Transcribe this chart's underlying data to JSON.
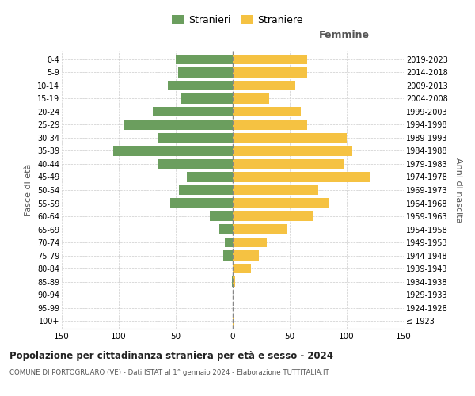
{
  "age_groups": [
    "100+",
    "95-99",
    "90-94",
    "85-89",
    "80-84",
    "75-79",
    "70-74",
    "65-69",
    "60-64",
    "55-59",
    "50-54",
    "45-49",
    "40-44",
    "35-39",
    "30-34",
    "25-29",
    "20-24",
    "15-19",
    "10-14",
    "5-9",
    "0-4"
  ],
  "birth_years": [
    "≤ 1923",
    "1924-1928",
    "1929-1933",
    "1934-1938",
    "1939-1943",
    "1944-1948",
    "1949-1953",
    "1954-1958",
    "1959-1963",
    "1964-1968",
    "1969-1973",
    "1974-1978",
    "1979-1983",
    "1984-1988",
    "1989-1993",
    "1994-1998",
    "1999-2003",
    "2004-2008",
    "2009-2013",
    "2014-2018",
    "2019-2023"
  ],
  "males": [
    0,
    0,
    0,
    1,
    0,
    8,
    7,
    12,
    20,
    55,
    47,
    40,
    65,
    105,
    65,
    95,
    70,
    45,
    57,
    48,
    50
  ],
  "females": [
    1,
    0,
    0,
    2,
    16,
    23,
    30,
    47,
    70,
    85,
    75,
    120,
    98,
    105,
    100,
    65,
    60,
    32,
    55,
    65,
    65
  ],
  "male_color": "#6b9e5e",
  "female_color": "#f5c242",
  "male_label": "Stranieri",
  "female_label": "Straniere",
  "title": "Popolazione per cittadinanza straniera per età e sesso - 2024",
  "subtitle": "COMUNE DI PORTOGRUARO (VE) - Dati ISTAT al 1° gennaio 2024 - Elaborazione TUTTITALIA.IT",
  "xlabel_right": "Femmine",
  "ylabel_left": "Fasce di età",
  "ylabel_right": "Anni di nascita",
  "xlim": 150,
  "background_color": "#ffffff",
  "grid_color": "#cccccc"
}
